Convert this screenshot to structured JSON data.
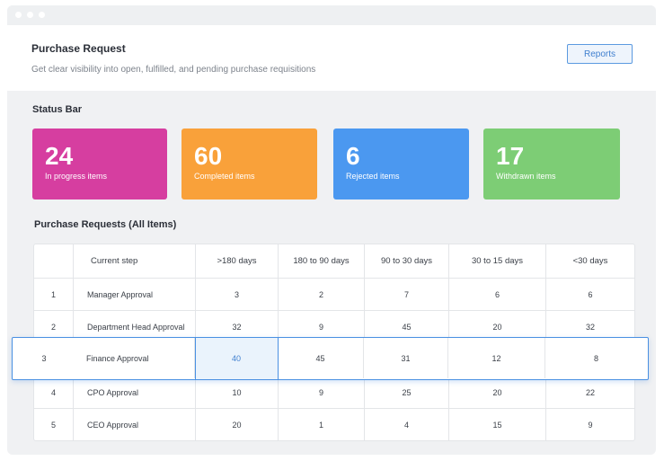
{
  "header": {
    "title": "Purchase Request",
    "subtitle": "Get clear visibility into open, fulfilled, and pending purchase requisitions",
    "reports_label": "Reports"
  },
  "status_bar": {
    "title": "Status Bar",
    "cards": [
      {
        "value": "24",
        "label": "In progress items",
        "color": "#d63ea0"
      },
      {
        "value": "60",
        "label": "Completed items",
        "color": "#f9a13a"
      },
      {
        "value": "6",
        "label": "Rejected items",
        "color": "#4b98f0"
      },
      {
        "value": "17",
        "label": "Withdrawn items",
        "color": "#7dcd75"
      }
    ]
  },
  "table": {
    "title": "Purchase Requests (All Items)",
    "columns": [
      "Current step",
      ">180 days",
      "180 to 90 days",
      "90 to 30 days",
      "30 to 15 days",
      "<30 days"
    ],
    "rows": [
      {
        "index": "1",
        "step": "Manager Approval",
        "values": [
          "3",
          "2",
          "7",
          "6",
          "6"
        ]
      },
      {
        "index": "2",
        "step": "Department Head Approval",
        "values": [
          "32",
          "9",
          "45",
          "20",
          "32"
        ]
      },
      {
        "index": "3",
        "step": "Finance Approval",
        "values": [
          "40",
          "45",
          "31",
          "12",
          "8"
        ]
      },
      {
        "index": "4",
        "step": "CPO Approval",
        "values": [
          "10",
          "9",
          "25",
          "20",
          "22"
        ]
      },
      {
        "index": "5",
        "step": "CEO Approval",
        "values": [
          "20",
          "1",
          "4",
          "15",
          "9"
        ]
      }
    ],
    "highlight_color": "#4a90e2"
  }
}
